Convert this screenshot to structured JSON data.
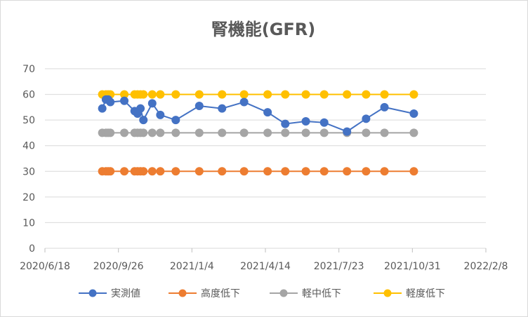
{
  "chart_data": {
    "type": "line",
    "title": "腎機能(GFR)",
    "xlabel": "",
    "ylabel": "",
    "ylim": [
      0,
      70
    ],
    "y_ticks": [
      0,
      10,
      20,
      30,
      40,
      50,
      60,
      70
    ],
    "x_range": [
      "2020-06-18",
      "2022-02-08"
    ],
    "x_tick_labels": [
      "2020/6/18",
      "2020/9/26",
      "2021/1/4",
      "2021/4/14",
      "2021/7/23",
      "2021/10/31",
      "2022/2/8"
    ],
    "grid": "horizontal",
    "legend_position": "bottom",
    "x": [
      "2020-09-04",
      "2020-09-09",
      "2020-09-12",
      "2020-09-15",
      "2020-10-04",
      "2020-10-18",
      "2020-10-22",
      "2020-10-26",
      "2020-10-30",
      "2020-11-11",
      "2020-11-22",
      "2020-12-13",
      "2021-01-14",
      "2021-02-14",
      "2021-03-16",
      "2021-04-17",
      "2021-05-11",
      "2021-06-08",
      "2021-07-03",
      "2021-08-03",
      "2021-08-29",
      "2021-09-23",
      "2021-11-02",
      "2021-11-27"
    ],
    "series": [
      {
        "name": "実測値",
        "color": "#4472c4",
        "values": [
          54.5,
          58,
          58,
          57,
          57.5,
          53.5,
          52.5,
          54.5,
          50,
          56.5,
          52,
          50,
          55.5,
          54.5,
          57,
          53,
          48.5,
          49.5,
          49,
          45.5,
          50.5,
          55,
          52.5,
          null
        ]
      },
      {
        "name": "高度低下",
        "color": "#ed7d31",
        "values": [
          30,
          30,
          30,
          30,
          30,
          30,
          30,
          30,
          30,
          30,
          30,
          30,
          30,
          30,
          30,
          30,
          30,
          30,
          30,
          30,
          30,
          30,
          30,
          null
        ]
      },
      {
        "name": "軽中低下",
        "color": "#a5a5a5",
        "values": [
          45,
          45,
          45,
          45,
          45,
          45,
          45,
          45,
          45,
          45,
          45,
          45,
          45,
          45,
          45,
          45,
          45,
          45,
          45,
          45,
          45,
          45,
          45,
          null
        ]
      },
      {
        "name": "軽度低下",
        "color": "#ffc000",
        "values": [
          60,
          60,
          60,
          60,
          60,
          60,
          60,
          60,
          60,
          60,
          60,
          60,
          60,
          60,
          60,
          60,
          60,
          60,
          60,
          60,
          60,
          60,
          60,
          null
        ]
      }
    ]
  }
}
